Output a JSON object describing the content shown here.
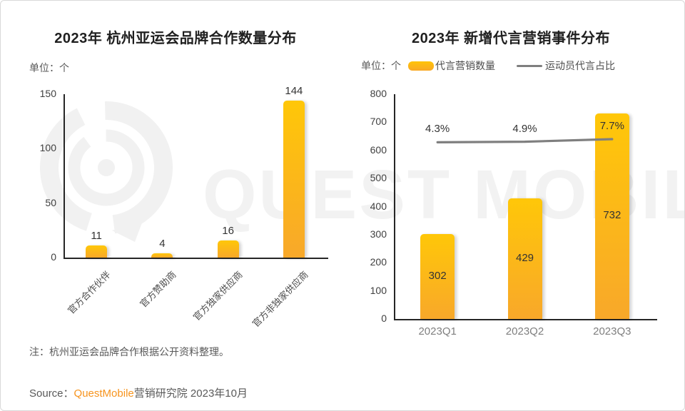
{
  "watermark": {
    "text": "QUEST MOBILE",
    "logo_icon": "questmobile-bubble-rings-logo",
    "color": "#f2f2f2"
  },
  "left_chart": {
    "title": "2023年 杭州亚运会品牌合作数量分布",
    "unit_label": "单位：个"
  },
  "right_chart": {
    "title": "2023年 新增代言营销事件分布",
    "unit_label": "单位：个",
    "legend": [
      {
        "label": "代言营销数量",
        "type": "bar",
        "color": "#ffb90b"
      },
      {
        "label": "运动员代言占比",
        "type": "line",
        "color": "#7f7f7f"
      }
    ]
  },
  "page": {
    "note": "注：杭州亚运会品牌合作根据公开资料整理。",
    "source_prefix": "Source：",
    "source_brand": "QuestMobile",
    "source_suffix": "营销研究院 2023年10月"
  },
  "colors": {
    "bar_gradient_top": "#ffc708",
    "bar_gradient_bottom": "#f8a82a",
    "trend_line": "#7f7f7f",
    "axis": "#262626",
    "brand_orange": "#f7941e",
    "card_border": "#d9d9d9"
  },
  "chart_data": [
    {
      "type": "bar",
      "title": "2023年 杭州亚运会品牌合作数量分布",
      "unit": "个",
      "categories": [
        "官方合作伙伴",
        "官方赞助商",
        "官方独家供应商",
        "官方非独家供应商"
      ],
      "values": [
        11,
        4,
        16,
        144
      ],
      "value_labels": [
        "11",
        "4",
        "16",
        "144"
      ],
      "ylim": [
        0,
        150
      ],
      "yticks": [
        0,
        50,
        100,
        150
      ],
      "grid": false,
      "legend": false,
      "category_label_rotation_deg": -45
    },
    {
      "type": "bar+line",
      "title": "2023年 新增代言营销事件分布",
      "unit": "个",
      "categories": [
        "2023Q1",
        "2023Q2",
        "2023Q3"
      ],
      "series": [
        {
          "name": "代言营销数量",
          "type": "bar",
          "axis": "primary",
          "values": [
            302,
            429,
            732
          ],
          "value_labels": [
            "302",
            "429",
            "732"
          ]
        },
        {
          "name": "运动员代言占比",
          "type": "line",
          "axis": "secondary",
          "unit": "%",
          "values": [
            4.3,
            4.9,
            7.7
          ],
          "value_labels": [
            "4.3%",
            "4.9%",
            "7.7%"
          ]
        }
      ],
      "ylim": [
        0,
        800
      ],
      "yticks": [
        0,
        100,
        200,
        300,
        400,
        500,
        600,
        700,
        800
      ],
      "grid": false,
      "legend_position": "top"
    }
  ]
}
